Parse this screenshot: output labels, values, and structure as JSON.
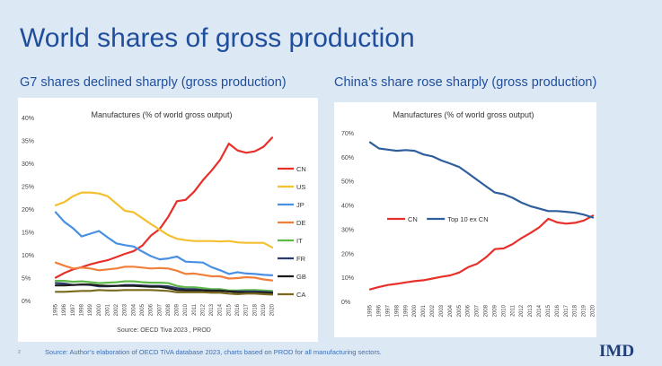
{
  "slide": {
    "title": "World shares of gross production",
    "subtitle_left": "G7 shares declined sharply (gross production)",
    "subtitle_right": "China’s share rose sharply (gross production)",
    "footnote": "Source: Author’s elaboration of OECD   TiVA database 2023, charts based on PROD for all manufacturing sectors.",
    "page_number": "2",
    "logo": "IMD"
  },
  "chart_data": [
    {
      "type": "line",
      "title": "Manufactures (% of world gross output)",
      "source_note": "Source: OECD Tiva 2023 , PROD",
      "x": [
        "1995",
        "1996",
        "1997",
        "1998",
        "1999",
        "2000",
        "2001",
        "2002",
        "2003",
        "2004",
        "2005",
        "2006",
        "2007",
        "2008",
        "2009",
        "2010",
        "2011",
        "2012",
        "2013",
        "2014",
        "2015",
        "2016",
        "2017",
        "2018",
        "2019",
        "2020"
      ],
      "ylim": [
        0,
        40
      ],
      "yticks": [
        "0%",
        "5%",
        "10%",
        "15%",
        "20%",
        "25%",
        "30%",
        "35%",
        "40%"
      ],
      "grid": false,
      "legend_position": "right",
      "series": [
        {
          "name": "CN",
          "color": "#e8302a",
          "values": [
            5.0,
            6.0,
            6.8,
            7.3,
            7.9,
            8.4,
            8.8,
            9.5,
            10.2,
            10.8,
            12.0,
            14.2,
            15.6,
            18.3,
            21.7,
            22.0,
            23.8,
            26.3,
            28.4,
            30.8,
            34.3,
            32.8,
            32.3,
            32.6,
            33.6,
            35.6
          ]
        },
        {
          "name": "US",
          "color": "#f4c030",
          "values": [
            20.8,
            21.5,
            22.8,
            23.6,
            23.6,
            23.4,
            22.8,
            21.2,
            19.6,
            19.3,
            18.0,
            16.7,
            15.5,
            14.3,
            13.5,
            13.2,
            13.0,
            13.0,
            13.0,
            12.9,
            13.0,
            12.7,
            12.6,
            12.6,
            12.6,
            11.6
          ]
        },
        {
          "name": "JP",
          "color": "#4a90e2",
          "values": [
            19.3,
            17.2,
            15.8,
            14.0,
            14.6,
            15.2,
            13.8,
            12.5,
            12.1,
            11.8,
            10.7,
            9.7,
            9.0,
            9.2,
            9.6,
            8.5,
            8.4,
            8.3,
            7.3,
            6.6,
            5.8,
            6.2,
            5.9,
            5.8,
            5.6,
            5.5
          ]
        },
        {
          "name": "DE",
          "color": "#f07f3c",
          "values": [
            8.3,
            7.6,
            7.0,
            7.2,
            7.0,
            6.6,
            6.8,
            7.0,
            7.4,
            7.4,
            7.2,
            7.0,
            7.1,
            7.0,
            6.5,
            5.8,
            5.9,
            5.6,
            5.3,
            5.3,
            4.8,
            4.9,
            5.1,
            5.0,
            4.6,
            4.4
          ]
        },
        {
          "name": "IT",
          "color": "#5fb84a",
          "values": [
            4.3,
            4.3,
            4.1,
            4.2,
            4.0,
            3.8,
            3.9,
            4.0,
            4.2,
            4.2,
            4.0,
            3.9,
            3.9,
            3.8,
            3.2,
            2.9,
            2.9,
            2.7,
            2.5,
            2.5,
            2.2,
            2.2,
            2.3,
            2.3,
            2.2,
            2.1
          ]
        },
        {
          "name": "FR",
          "color": "#2e3a6e",
          "values": [
            3.8,
            3.7,
            3.4,
            3.5,
            3.4,
            3.1,
            3.1,
            3.2,
            3.4,
            3.4,
            3.3,
            3.2,
            3.2,
            3.1,
            2.7,
            2.5,
            2.5,
            2.3,
            2.2,
            2.2,
            2.0,
            2.0,
            2.0,
            2.0,
            1.9,
            1.8
          ]
        },
        {
          "name": "GB",
          "color": "#1b1b1b",
          "values": [
            3.3,
            3.3,
            3.4,
            3.5,
            3.5,
            3.3,
            3.2,
            3.2,
            3.2,
            3.2,
            3.1,
            3.0,
            3.0,
            2.7,
            2.3,
            2.2,
            2.2,
            2.2,
            2.1,
            2.1,
            2.0,
            1.8,
            1.7,
            1.7,
            1.7,
            1.6
          ]
        },
        {
          "name": "CA",
          "color": "#7a6a1e",
          "values": [
            1.9,
            1.9,
            2.0,
            2.1,
            2.1,
            2.3,
            2.2,
            2.2,
            2.3,
            2.3,
            2.3,
            2.3,
            2.2,
            2.1,
            1.8,
            1.8,
            1.8,
            1.8,
            1.7,
            1.7,
            1.5,
            1.4,
            1.5,
            1.5,
            1.4,
            1.3
          ]
        }
      ]
    },
    {
      "type": "line",
      "title": "Manufactures (% of world gross output)",
      "x": [
        "1995",
        "1996",
        "1997",
        "1998",
        "1999",
        "2000",
        "2001",
        "2002",
        "2003",
        "2004",
        "2005",
        "2006",
        "2007",
        "2008",
        "2009",
        "2010",
        "2011",
        "2012",
        "2013",
        "2014",
        "2015",
        "2016",
        "2017",
        "2018",
        "2019",
        "2020"
      ],
      "ylim": [
        0,
        70
      ],
      "yticks": [
        "0%",
        "10%",
        "20%",
        "30%",
        "40%",
        "50%",
        "60%",
        "70%"
      ],
      "grid": false,
      "legend_position": "center",
      "series": [
        {
          "name": "CN",
          "color": "#e8302a",
          "values": [
            5.0,
            6.0,
            6.8,
            7.3,
            7.9,
            8.4,
            8.8,
            9.5,
            10.2,
            10.8,
            12.0,
            14.2,
            15.6,
            18.3,
            21.7,
            22.0,
            23.8,
            26.3,
            28.4,
            30.8,
            34.3,
            32.8,
            32.3,
            32.6,
            33.6,
            35.6
          ]
        },
        {
          "name": "Top  10 ex CN",
          "color": "#2e5f9c",
          "values": [
            66.0,
            63.5,
            63.0,
            62.5,
            62.8,
            62.5,
            61.0,
            60.2,
            58.5,
            57.2,
            55.8,
            53.2,
            50.5,
            47.8,
            45.2,
            44.5,
            43.0,
            41.0,
            39.5,
            38.5,
            37.5,
            37.5,
            37.2,
            36.8,
            36.0,
            34.8
          ]
        }
      ]
    }
  ]
}
